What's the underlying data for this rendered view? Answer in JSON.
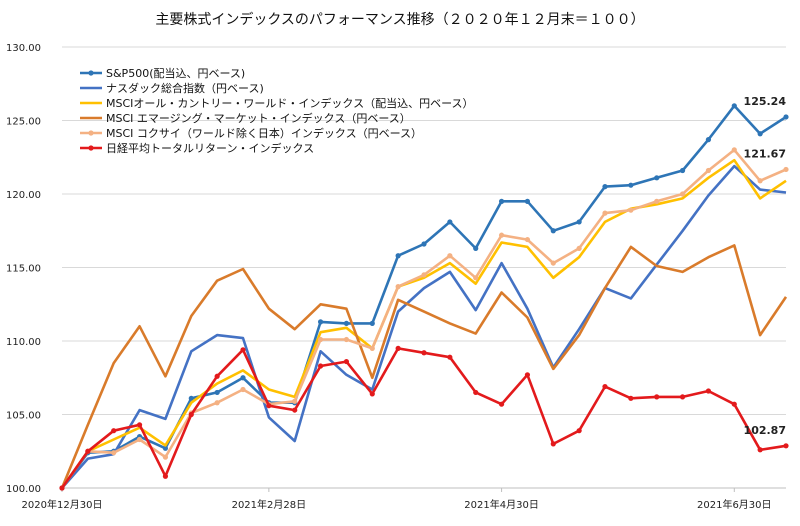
{
  "chart_data": {
    "type": "line",
    "title": "主要株式インデックスのパフォーマンス推移（２０２０年１２月末＝１００）",
    "xlabel": "",
    "ylabel": "",
    "ylim": [
      100,
      130
    ],
    "y_ticks": [
      "100.00",
      "105.00",
      "110.00",
      "115.00",
      "120.00",
      "125.00",
      "130.00"
    ],
    "x_tick_labels": [
      {
        "index": 0,
        "label": "2020年12月30日"
      },
      {
        "index": 8,
        "label": "2021年2月28日"
      },
      {
        "index": 17,
        "label": "2021年4月30日"
      },
      {
        "index": 26,
        "label": "2021年6月30日"
      }
    ],
    "grid": "horizontal",
    "legend_position": "top-left",
    "series": [
      {
        "name": "S&P500(配当込、円ベース)",
        "color": "#2e75b6",
        "marker": true,
        "values": [
          100.0,
          102.4,
          102.5,
          103.5,
          102.7,
          106.1,
          106.5,
          107.5,
          105.8,
          105.8,
          111.3,
          111.2,
          111.2,
          115.8,
          116.6,
          118.1,
          116.3,
          119.5,
          119.5,
          117.5,
          118.1,
          120.5,
          120.6,
          121.1,
          121.6,
          123.7,
          126.0,
          124.1,
          125.24
        ]
      },
      {
        "name": "ナスダック総合指数（円ベース)",
        "color": "#4472c4",
        "marker": false,
        "values": [
          100.0,
          102.0,
          102.3,
          105.3,
          104.7,
          109.3,
          110.4,
          110.2,
          104.8,
          103.2,
          109.3,
          107.7,
          106.7,
          112.0,
          113.6,
          114.7,
          112.1,
          115.3,
          112.2,
          108.2,
          110.8,
          113.6,
          112.9,
          115.2,
          117.5,
          119.9,
          121.9,
          120.3,
          120.1
        ]
      },
      {
        "name": "MSCIオール・カントリー・ワールド・インデックス（配当込、円ベース）",
        "color": "#ffc000",
        "marker": false,
        "values": [
          100.0,
          102.5,
          103.3,
          104.1,
          102.9,
          105.8,
          107.1,
          108.0,
          106.7,
          106.2,
          110.6,
          110.9,
          109.5,
          113.7,
          114.3,
          115.3,
          113.9,
          116.7,
          116.4,
          114.3,
          115.7,
          118.1,
          119.0,
          119.3,
          119.7,
          121.1,
          122.3,
          119.7,
          120.9
        ]
      },
      {
        "name": "MSCI エマージング・マーケット・インデックス（円ベース）",
        "color": "#d97b2b",
        "marker": false,
        "values": [
          100.0,
          104.3,
          108.5,
          111.0,
          107.6,
          111.7,
          114.1,
          114.9,
          112.2,
          110.8,
          112.5,
          112.2,
          107.5,
          112.8,
          112.0,
          111.2,
          110.5,
          113.3,
          111.6,
          108.1,
          110.4,
          113.6,
          116.4,
          115.1,
          114.7,
          115.7,
          116.5,
          110.4,
          113.0
        ]
      },
      {
        "name": "MSCI コクサイ（ワールド除く日本）インデックス（円ベース）",
        "color": "#f4b183",
        "marker": true,
        "values": [
          100.0,
          102.5,
          102.4,
          103.3,
          102.1,
          105.1,
          105.8,
          106.7,
          105.7,
          105.9,
          110.1,
          110.1,
          109.5,
          113.7,
          114.5,
          115.8,
          114.3,
          117.2,
          116.9,
          115.3,
          116.3,
          118.7,
          118.9,
          119.5,
          120.0,
          121.6,
          123.0,
          120.9,
          121.67
        ]
      },
      {
        "name": "日経平均トータルリターン・インデックス",
        "color": "#e31a1c",
        "marker": true,
        "values": [
          100.0,
          102.5,
          103.9,
          104.3,
          100.8,
          105.0,
          107.6,
          109.4,
          105.6,
          105.3,
          108.3,
          108.6,
          106.4,
          109.5,
          109.2,
          108.9,
          106.5,
          105.7,
          107.7,
          103.0,
          103.9,
          106.9,
          106.1,
          106.2,
          106.2,
          106.6,
          105.7,
          102.6,
          102.87
        ]
      }
    ],
    "annotations": [
      {
        "series_index": 0,
        "text": "125.24"
      },
      {
        "series_index": 4,
        "text": "121.67"
      },
      {
        "series_index": 5,
        "text": "102.87"
      }
    ]
  }
}
